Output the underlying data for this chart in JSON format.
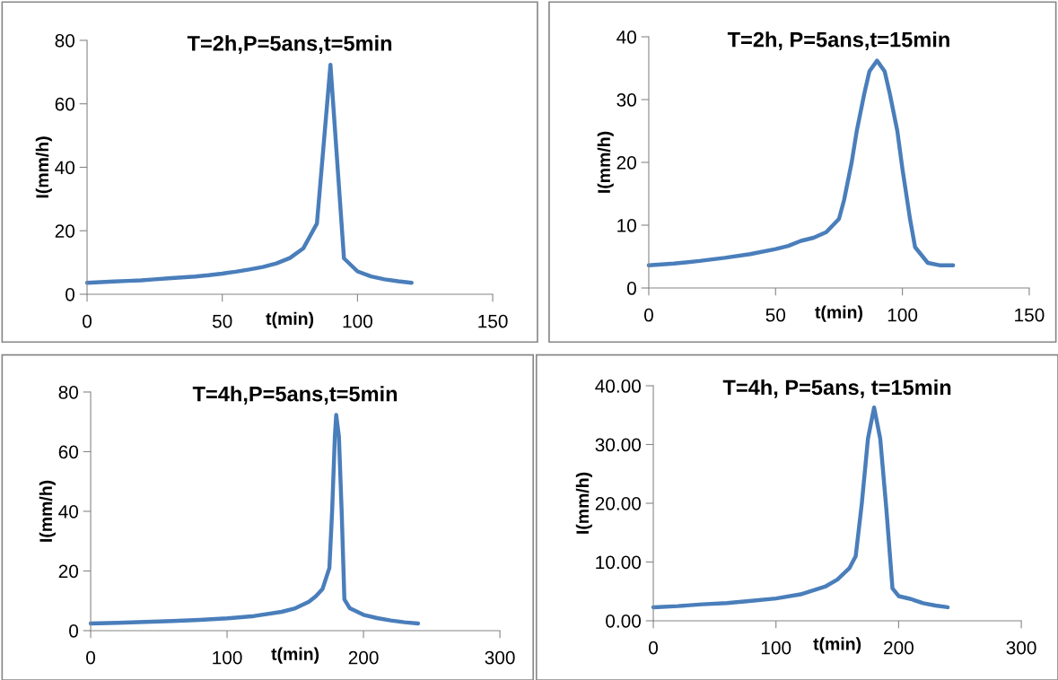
{
  "chart_data": [
    {
      "type": "line",
      "title": "T=2h,P=5ans,t=5min",
      "xlabel": "t(min)",
      "ylabel": "I(mm/h)",
      "xlim": [
        0,
        150
      ],
      "xticks": [
        0,
        50,
        100,
        150
      ],
      "ylim": [
        0,
        80
      ],
      "yticks": [
        0,
        20,
        40,
        60,
        80
      ],
      "grid": false,
      "marker": "none",
      "line_style": "solid",
      "series": [
        {
          "color": "#4a7ebb",
          "x": [
            0,
            5,
            10,
            15,
            20,
            25,
            30,
            35,
            40,
            45,
            50,
            55,
            60,
            65,
            70,
            75,
            80,
            85,
            90,
            95,
            100,
            105,
            110,
            115,
            120
          ],
          "values": [
            3.6,
            3.8,
            4.0,
            4.2,
            4.4,
            4.7,
            5.0,
            5.3,
            5.6,
            6.0,
            6.5,
            7.1,
            7.8,
            8.6,
            9.7,
            11.4,
            14.5,
            22.3,
            72.3,
            11.3,
            7.2,
            5.6,
            4.7,
            4.1,
            3.6
          ]
        }
      ]
    },
    {
      "type": "line",
      "title": "T=2h, P=5ans,t=15min",
      "xlabel": "t(min)",
      "ylabel": "I(mm/h)",
      "xlim": [
        0,
        150
      ],
      "xticks": [
        0,
        50,
        100,
        150
      ],
      "ylim": [
        0,
        40
      ],
      "yticks": [
        0,
        10,
        20,
        30,
        40
      ],
      "grid": false,
      "marker": "none",
      "line_style": "solid",
      "series": [
        {
          "color": "#4a7ebb",
          "x": [
            0,
            10,
            20,
            30,
            40,
            50,
            55,
            60,
            65,
            70,
            75,
            77,
            80,
            82,
            85,
            87,
            90,
            93,
            95,
            98,
            100,
            103,
            105,
            110,
            115,
            120
          ],
          "values": [
            3.6,
            3.9,
            4.3,
            4.8,
            5.4,
            6.2,
            6.7,
            7.5,
            8.0,
            8.9,
            11,
            14,
            20,
            25,
            31,
            34.5,
            36.2,
            34.5,
            31,
            25,
            19,
            11,
            6.5,
            4.0,
            3.6,
            3.6
          ]
        }
      ]
    },
    {
      "type": "line",
      "title": "T=4h,P=5ans,t=5min",
      "xlabel": "t(min)",
      "ylabel": "I(mm/h)",
      "xlim": [
        0,
        300
      ],
      "xticks": [
        0,
        100,
        200,
        300
      ],
      "ylim": [
        0,
        80
      ],
      "yticks": [
        0,
        20,
        40,
        60,
        80
      ],
      "grid": false,
      "marker": "none",
      "line_style": "solid",
      "series": [
        {
          "color": "#4a7ebb",
          "x": [
            0,
            20,
            40,
            60,
            80,
            100,
            120,
            140,
            150,
            160,
            165,
            170,
            175,
            177,
            179,
            180,
            182,
            184,
            186,
            190,
            200,
            210,
            220,
            230,
            240
          ],
          "values": [
            2.4,
            2.6,
            2.9,
            3.2,
            3.6,
            4.1,
            4.9,
            6.3,
            7.5,
            9.7,
            11.5,
            14,
            21,
            40,
            65,
            72.3,
            65,
            40,
            10.5,
            7.5,
            5.3,
            4.2,
            3.4,
            2.8,
            2.4
          ]
        }
      ]
    },
    {
      "type": "line",
      "title": "T=4h, P=5ans, t=15min",
      "xlabel": "t(min)",
      "ylabel": "I(mm/h)",
      "xlim": [
        0,
        300
      ],
      "xticks": [
        0,
        100,
        200,
        300
      ],
      "ylim": [
        0,
        40
      ],
      "yticks": [
        {
          "value": 0,
          "label": "0.00"
        },
        {
          "value": 10,
          "label": "10.00"
        },
        {
          "value": 20,
          "label": "20.00"
        },
        {
          "value": 30,
          "label": "30.00"
        },
        {
          "value": 40,
          "label": "40.00"
        }
      ],
      "grid": false,
      "marker": "none",
      "line_style": "solid",
      "series": [
        {
          "color": "#4a7ebb",
          "x": [
            0,
            20,
            40,
            60,
            80,
            100,
            120,
            140,
            150,
            160,
            165,
            170,
            175,
            180,
            185,
            190,
            195,
            200,
            210,
            220,
            230,
            240
          ],
          "values": [
            2.3,
            2.5,
            2.8,
            3.0,
            3.4,
            3.8,
            4.5,
            5.8,
            7.0,
            9.0,
            11,
            20,
            31,
            36.3,
            31,
            19,
            5.5,
            4.2,
            3.7,
            3.0,
            2.6,
            2.3
          ]
        }
      ]
    }
  ]
}
